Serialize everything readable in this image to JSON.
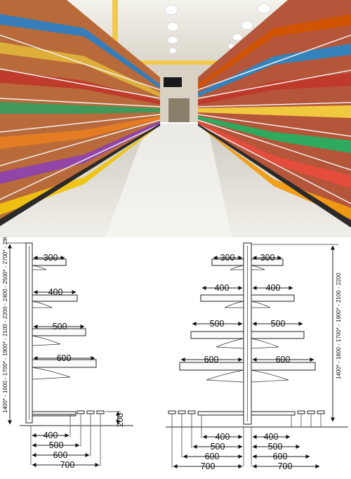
{
  "photo": {
    "scene": "supermarket-aisle",
    "colors": {
      "floor": "#e8e6df",
      "ceiling": "#ece9e0",
      "beam": "#f2c94c",
      "wall": "#d9d2c4"
    }
  },
  "diagram": {
    "single_sided": {
      "shelf_depths": [
        "300",
        "400",
        "500",
        "600"
      ],
      "base_depths": [
        "400",
        "500",
        "600",
        "700"
      ],
      "base_height": "200",
      "height_options": "1400* - 1600 - 1700* - 1900* - 2100 - 2200 - 2400 - 2500* - 2700* - 2900*"
    },
    "double_sided": {
      "left_shelf_depths": [
        "300",
        "400",
        "500",
        "600"
      ],
      "right_shelf_depths": [
        "300",
        "400",
        "500",
        "600"
      ],
      "left_base_depths": [
        "400",
        "500",
        "600",
        "700"
      ],
      "right_base_depths": [
        "400",
        "500",
        "600",
        "700"
      ],
      "height_options": "1400* - 1600 - 1700* - 1900* - 2100 - 2200"
    }
  }
}
